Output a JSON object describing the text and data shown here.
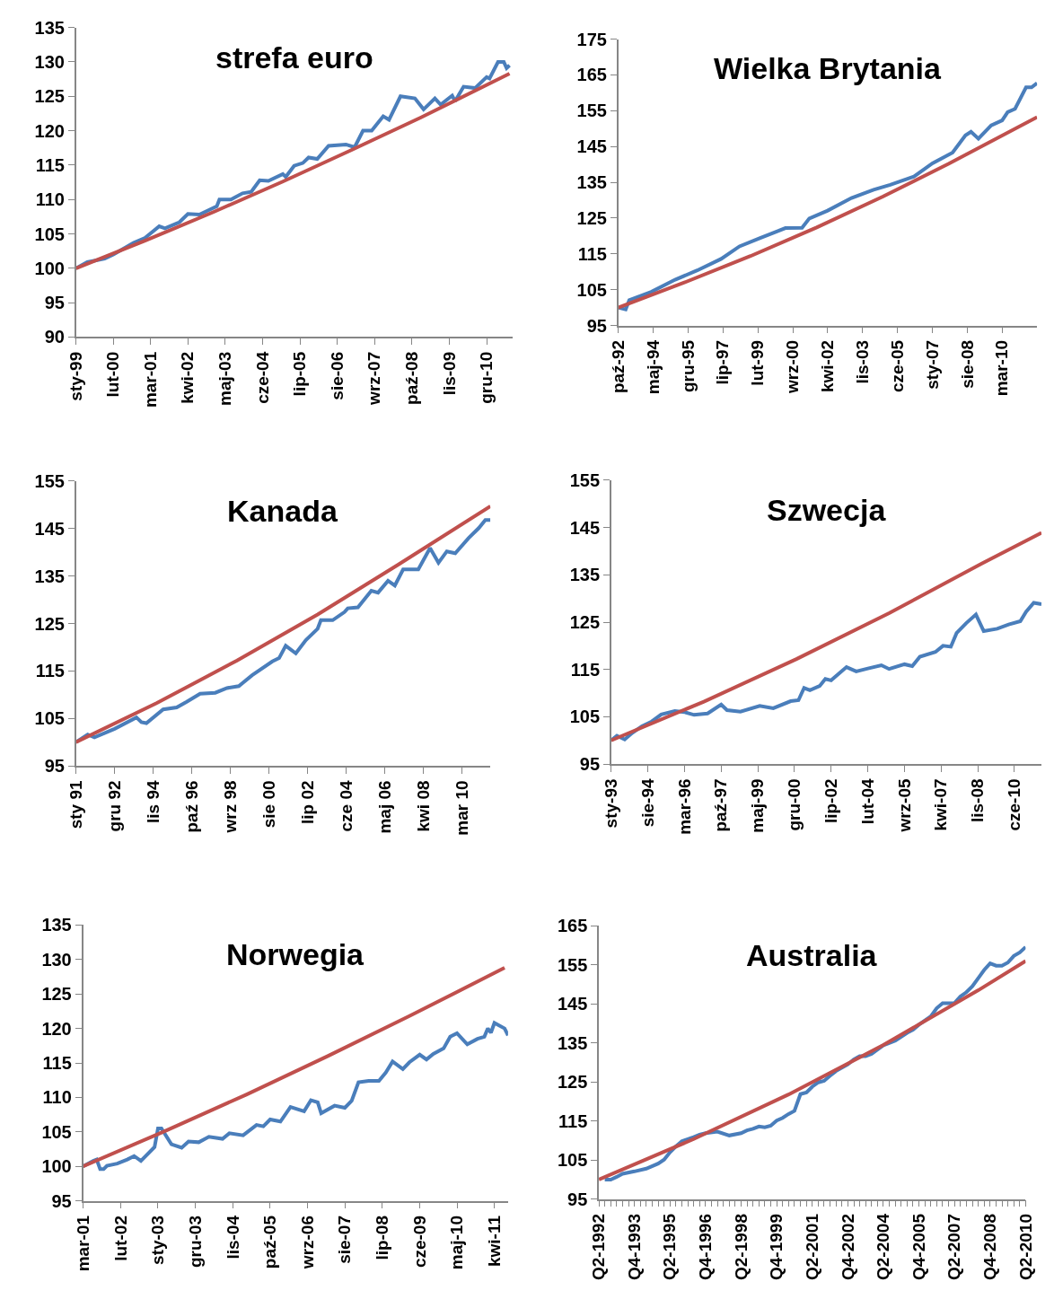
{
  "chart_data": [
    {
      "type": "line",
      "title": "strefa euro",
      "xlim": [
        "1999-01",
        "2011-09"
      ],
      "xticks": [
        {
          "value": "1999-01",
          "label": "sty-99"
        },
        {
          "value": "2000-02",
          "label": "lut-00"
        },
        {
          "value": "2001-03",
          "label": "mar-01"
        },
        {
          "value": "2002-04",
          "label": "kwi-02"
        },
        {
          "value": "2003-05",
          "label": "maj-03"
        },
        {
          "value": "2004-06",
          "label": "cze-04"
        },
        {
          "value": "2005-07",
          "label": "lip-05"
        },
        {
          "value": "2006-08",
          "label": "sie-06"
        },
        {
          "value": "2007-09",
          "label": "wrz-07"
        },
        {
          "value": "2008-10",
          "label": "paź-08"
        },
        {
          "value": "2009-11",
          "label": "lis-09"
        },
        {
          "value": "2010-12",
          "label": "gru-10"
        }
      ],
      "ylim": [
        90,
        135
      ],
      "yticks": [
        90,
        95,
        100,
        105,
        110,
        115,
        120,
        125,
        130,
        135
      ],
      "series": [
        {
          "color": "#4a7ebb",
          "x": [
            "1999-01",
            "1999-05",
            "1999-11",
            "2000-02",
            "2000-09",
            "2001-01",
            "2001-06",
            "2001-08",
            "2002-01",
            "2002-04",
            "2002-08",
            "2003-02",
            "2003-03",
            "2003-07",
            "2003-11",
            "2004-02",
            "2004-05",
            "2004-08",
            "2005-01",
            "2005-02",
            "2005-05",
            "2005-08",
            "2005-10",
            "2006-01",
            "2006-05",
            "2006-11",
            "2007-02",
            "2007-05",
            "2007-08",
            "2007-12",
            "2008-02",
            "2008-06",
            "2008-11",
            "2009-02",
            "2009-06",
            "2009-08",
            "2009-12",
            "2010-01",
            "2010-04",
            "2010-08",
            "2010-12",
            "2011-01",
            "2011-04",
            "2011-06",
            "2011-07",
            "2011-08"
          ],
          "values": [
            100,
            100.9,
            101.4,
            102,
            103.7,
            104.4,
            106.1,
            105.8,
            106.7,
            107.9,
            107.8,
            109,
            110,
            110,
            110.9,
            111.1,
            112.8,
            112.7,
            113.7,
            113.3,
            114.9,
            115.3,
            116.1,
            115.9,
            117.8,
            118,
            117.6,
            120,
            120,
            122.1,
            121.6,
            125,
            124.7,
            123.1,
            124.7,
            123.8,
            125.1,
            124.3,
            126.4,
            126.2,
            127.8,
            127.6,
            130,
            130,
            129.1,
            129.5
          ]
        },
        {
          "color": "#c0504d",
          "x": [
            "1999-01",
            "2001-01",
            "2003-01",
            "2005-01",
            "2007-01",
            "2009-01",
            "2011-08"
          ],
          "values": [
            100,
            104.0,
            108.2,
            112.6,
            117.2,
            121.9,
            128.3
          ]
        }
      ]
    },
    {
      "type": "line",
      "title": "Wielka Brytania",
      "xlim": [
        "1992-10",
        "2011-10"
      ],
      "xticks": [
        {
          "value": "1992-10",
          "label": "paź-92"
        },
        {
          "value": "1994-05",
          "label": "maj-94"
        },
        {
          "value": "1995-12",
          "label": "gru-95"
        },
        {
          "value": "1997-07",
          "label": "lip-97"
        },
        {
          "value": "1999-02",
          "label": "lut-99"
        },
        {
          "value": "2000-09",
          "label": "wrz-00"
        },
        {
          "value": "2002-04",
          "label": "kwi-02"
        },
        {
          "value": "2003-11",
          "label": "lis-03"
        },
        {
          "value": "2005-06",
          "label": "cze-05"
        },
        {
          "value": "2007-01",
          "label": "sty-07"
        },
        {
          "value": "2008-08",
          "label": "sie-08"
        },
        {
          "value": "2010-03",
          "label": "mar-10"
        }
      ],
      "ylim": [
        95,
        175
      ],
      "yticks": [
        95,
        105,
        115,
        125,
        135,
        145,
        155,
        165,
        175
      ],
      "series": [
        {
          "color": "#4a7ebb",
          "x": [
            "1992-10",
            "1993-02",
            "1993-04",
            "1994-04",
            "1995-05",
            "1996-05",
            "1997-06",
            "1998-04",
            "1999-03",
            "2000-05",
            "2001-02",
            "2001-06",
            "2002-04",
            "2003-05",
            "2004-05",
            "2005-02",
            "2006-03",
            "2007-01",
            "2007-12",
            "2008-07",
            "2008-10",
            "2009-02",
            "2009-09",
            "2010-03",
            "2010-06",
            "2010-10",
            "2011-04",
            "2011-07",
            "2011-10"
          ],
          "values": [
            100,
            99.5,
            102.1,
            104.4,
            107.8,
            110.4,
            113.6,
            117.1,
            119.4,
            122.2,
            122.3,
            124.9,
            127.1,
            130.6,
            132.9,
            134.3,
            136.6,
            140.3,
            143.3,
            148.1,
            149.1,
            147.2,
            150.9,
            152.3,
            154.6,
            155.5,
            161.5,
            161.5,
            162.7
          ]
        },
        {
          "color": "#c0504d",
          "x": [
            "1992-10",
            "1995-10",
            "1998-10",
            "2001-10",
            "2004-10",
            "2007-10",
            "2011-10"
          ],
          "values": [
            100,
            107.0,
            114.4,
            122.4,
            131.0,
            140.2,
            153.2
          ]
        }
      ]
    },
    {
      "type": "line",
      "title": "Kanada",
      "xlim": [
        "1991-01",
        "2011-08"
      ],
      "xticks": [
        {
          "value": "1991-01",
          "label": "sty 91"
        },
        {
          "value": "1992-12",
          "label": "gru 92"
        },
        {
          "value": "1994-11",
          "label": "lis 94"
        },
        {
          "value": "1996-10",
          "label": "paź 96"
        },
        {
          "value": "1998-09",
          "label": "wrz 98"
        },
        {
          "value": "2000-08",
          "label": "sie 00"
        },
        {
          "value": "2002-07",
          "label": "lip 02"
        },
        {
          "value": "2004-06",
          "label": "cze 04"
        },
        {
          "value": "2006-05",
          "label": "maj 06"
        },
        {
          "value": "2008-04",
          "label": "kwi 08"
        },
        {
          "value": "2010-03",
          "label": "mar 10"
        }
      ],
      "ylim": [
        95,
        155
      ],
      "yticks": [
        95,
        105,
        115,
        125,
        135,
        145,
        155
      ],
      "series": [
        {
          "color": "#4a7ebb",
          "x": [
            "1991-01",
            "1991-08",
            "1991-12",
            "1992-12",
            "1994-01",
            "1994-04",
            "1994-07",
            "1995-05",
            "1996-01",
            "1996-07",
            "1997-03",
            "1997-12",
            "1998-07",
            "1999-02",
            "1999-10",
            "2000-10",
            "2001-02",
            "2001-06",
            "2001-12",
            "2002-06",
            "2003-01",
            "2003-03",
            "2003-10",
            "2004-05",
            "2004-07",
            "2005-01",
            "2005-09",
            "2006-01",
            "2006-07",
            "2006-11",
            "2007-04",
            "2008-01",
            "2008-08",
            "2009-01",
            "2009-06",
            "2009-11",
            "2010-07",
            "2011-01",
            "2011-05",
            "2011-08"
          ],
          "values": [
            100,
            101.6,
            101,
            102.8,
            105.2,
            104.2,
            104,
            106.9,
            107.3,
            108.5,
            110.2,
            110.4,
            111.4,
            111.8,
            114.1,
            117,
            117.7,
            120.3,
            118.7,
            121.5,
            123.9,
            125.7,
            125.7,
            127.4,
            128.2,
            128.4,
            131.9,
            131.5,
            134,
            133,
            136.4,
            136.4,
            140.9,
            137.8,
            140.2,
            139.8,
            143,
            145.1,
            146.8,
            146.8
          ]
        },
        {
          "color": "#c0504d",
          "x": [
            "1991-01",
            "1995-01",
            "1999-01",
            "2003-01",
            "2007-01",
            "2011-08"
          ],
          "values": [
            100,
            108.2,
            117.2,
            126.9,
            137.4,
            149.7
          ]
        }
      ]
    },
    {
      "type": "line",
      "title": "Szwecja",
      "xlim": [
        "1993-01",
        "2011-08"
      ],
      "xticks": [
        {
          "value": "1993-01",
          "label": "sty-93"
        },
        {
          "value": "1994-08",
          "label": "sie-94"
        },
        {
          "value": "1996-03",
          "label": "mar-96"
        },
        {
          "value": "1997-10",
          "label": "paź-97"
        },
        {
          "value": "1999-05",
          "label": "maj-99"
        },
        {
          "value": "2000-12",
          "label": "gru-00"
        },
        {
          "value": "2002-07",
          "label": "lip-02"
        },
        {
          "value": "2004-02",
          "label": "lut-04"
        },
        {
          "value": "2005-09",
          "label": "wrz-05"
        },
        {
          "value": "2007-04",
          "label": "kwi-07"
        },
        {
          "value": "2008-11",
          "label": "lis-08"
        },
        {
          "value": "2010-06",
          "label": "cze-10"
        }
      ],
      "ylim": [
        95,
        155
      ],
      "yticks": [
        95,
        105,
        115,
        125,
        135,
        145,
        155
      ],
      "series": [
        {
          "color": "#4a7ebb",
          "x": [
            "1993-01",
            "1993-04",
            "1993-08",
            "1993-12",
            "1994-05",
            "1994-10",
            "1995-03",
            "1995-10",
            "1996-03",
            "1996-08",
            "1997-03",
            "1997-10",
            "1998-01",
            "1998-08",
            "1999-06",
            "2000-01",
            "2000-10",
            "2001-02",
            "2001-05",
            "2001-08",
            "2002-01",
            "2002-04",
            "2002-07",
            "2003-03",
            "2003-08",
            "2004-02",
            "2004-09",
            "2005-01",
            "2005-09",
            "2006-01",
            "2006-05",
            "2007-01",
            "2007-05",
            "2007-09",
            "2007-12",
            "2008-05",
            "2008-10",
            "2009-02",
            "2009-09",
            "2010-03",
            "2010-09",
            "2010-12",
            "2011-04",
            "2011-08"
          ],
          "values": [
            100,
            101,
            100.2,
            101.6,
            103,
            104,
            105.5,
            106.2,
            106,
            105.4,
            105.7,
            107.6,
            106.4,
            106.1,
            107.3,
            106.8,
            108.3,
            108.5,
            111.1,
            110.6,
            111.5,
            113,
            112.7,
            115.5,
            114.6,
            115.2,
            115.9,
            115.1,
            116.1,
            115.7,
            117.7,
            118.7,
            120,
            119.8,
            122.7,
            124.8,
            126.6,
            123.1,
            123.6,
            124.5,
            125.2,
            127.2,
            129.1,
            128.8
          ]
        },
        {
          "color": "#c0504d",
          "x": [
            "1993-01",
            "1997-01",
            "2001-01",
            "2005-01",
            "2009-01",
            "2011-08"
          ],
          "values": [
            100,
            108.2,
            117.2,
            126.9,
            137.4,
            143.9
          ]
        }
      ]
    },
    {
      "type": "line",
      "title": "Norwegia",
      "xlim": [
        "2001-03",
        "2011-08"
      ],
      "xticks": [
        {
          "value": "2001-03",
          "label": "mar-01"
        },
        {
          "value": "2002-02",
          "label": "lut-02"
        },
        {
          "value": "2003-01",
          "label": "sty-03"
        },
        {
          "value": "2003-12",
          "label": "gru-03"
        },
        {
          "value": "2004-11",
          "label": "lis-04"
        },
        {
          "value": "2005-10",
          "label": "paź-05"
        },
        {
          "value": "2006-09",
          "label": "wrz-06"
        },
        {
          "value": "2007-08",
          "label": "sie-07"
        },
        {
          "value": "2008-07",
          "label": "lip-08"
        },
        {
          "value": "2009-06",
          "label": "cze-09"
        },
        {
          "value": "2010-05",
          "label": "maj-10"
        },
        {
          "value": "2011-04",
          "label": "kwi-11"
        }
      ],
      "ylim": [
        95,
        135
      ],
      "yticks": [
        95,
        100,
        105,
        110,
        115,
        120,
        125,
        130,
        135
      ],
      "series": [
        {
          "color": "#4a7ebb",
          "x": [
            "2001-03",
            "2001-06",
            "2001-07",
            "2001-08",
            "2001-09",
            "2001-10",
            "2002-01",
            "2002-04",
            "2002-06",
            "2002-08",
            "2002-12",
            "2003-01",
            "2003-02",
            "2003-05",
            "2003-08",
            "2003-10",
            "2004-01",
            "2004-04",
            "2004-08",
            "2004-10",
            "2005-02",
            "2005-06",
            "2005-08",
            "2005-10",
            "2006-01",
            "2006-04",
            "2006-08",
            "2006-10",
            "2006-12",
            "2007-01",
            "2007-05",
            "2007-08",
            "2007-10",
            "2007-12",
            "2008-03",
            "2008-06",
            "2008-08",
            "2008-10",
            "2009-01",
            "2009-03",
            "2009-06",
            "2009-08",
            "2009-10",
            "2010-01",
            "2010-03",
            "2010-05",
            "2010-08",
            "2010-11",
            "2011-01",
            "2011-02",
            "2011-03",
            "2011-04",
            "2011-07",
            "2011-08"
          ],
          "values": [
            100,
            100.8,
            101,
            99.6,
            99.6,
            100.1,
            100.4,
            101,
            101.5,
            100.8,
            102.8,
            105.5,
            105.5,
            103.2,
            102.7,
            103.6,
            103.5,
            104.3,
            104,
            104.8,
            104.5,
            106,
            105.8,
            106.8,
            106.5,
            108.6,
            108,
            109.6,
            109.3,
            107.7,
            108.8,
            108.5,
            109.5,
            112.2,
            112.4,
            112.4,
            113.6,
            115.2,
            114.1,
            115.1,
            116.2,
            115.5,
            116.3,
            117.1,
            118.8,
            119.3,
            117.7,
            118.5,
            118.8,
            120,
            119.4,
            120.8,
            120,
            119
          ]
        },
        {
          "color": "#c0504d",
          "x": [
            "2001-03",
            "2003-03",
            "2005-03",
            "2007-03",
            "2009-03",
            "2011-07"
          ],
          "values": [
            100,
            105.1,
            110.4,
            116.0,
            121.8,
            128.8
          ]
        }
      ]
    },
    {
      "type": "line",
      "title": "Australia",
      "xlim": [
        "1992-04",
        "2010-04"
      ],
      "xticks": [
        {
          "value": "1992-04",
          "label": "Q2-1992"
        },
        {
          "value": "1992-07",
          "label": null
        },
        {
          "value": "1992-10",
          "label": null
        },
        {
          "value": "1993-01",
          "label": null
        },
        {
          "value": "1993-04",
          "label": null
        },
        {
          "value": "1993-07",
          "label": null
        },
        {
          "value": "1993-10",
          "label": "Q4-1993"
        },
        {
          "value": "1994-01",
          "label": null
        },
        {
          "value": "1994-04",
          "label": null
        },
        {
          "value": "1994-07",
          "label": null
        },
        {
          "value": "1994-10",
          "label": null
        },
        {
          "value": "1995-01",
          "label": null
        },
        {
          "value": "1995-04",
          "label": "Q2-1995"
        },
        {
          "value": "1995-07",
          "label": null
        },
        {
          "value": "1995-10",
          "label": null
        },
        {
          "value": "1996-01",
          "label": null
        },
        {
          "value": "1996-04",
          "label": null
        },
        {
          "value": "1996-07",
          "label": null
        },
        {
          "value": "1996-10",
          "label": "Q4-1996"
        },
        {
          "value": "1997-01",
          "label": null
        },
        {
          "value": "1997-04",
          "label": null
        },
        {
          "value": "1997-07",
          "label": null
        },
        {
          "value": "1997-10",
          "label": null
        },
        {
          "value": "1998-01",
          "label": null
        },
        {
          "value": "1998-04",
          "label": "Q2-1998"
        },
        {
          "value": "1998-07",
          "label": null
        },
        {
          "value": "1998-10",
          "label": null
        },
        {
          "value": "1999-01",
          "label": null
        },
        {
          "value": "1999-04",
          "label": null
        },
        {
          "value": "1999-07",
          "label": null
        },
        {
          "value": "1999-10",
          "label": "Q4-1999"
        },
        {
          "value": "2000-01",
          "label": null
        },
        {
          "value": "2000-04",
          "label": null
        },
        {
          "value": "2000-07",
          "label": null
        },
        {
          "value": "2000-10",
          "label": null
        },
        {
          "value": "2001-01",
          "label": null
        },
        {
          "value": "2001-04",
          "label": "Q2-2001"
        },
        {
          "value": "2001-07",
          "label": null
        },
        {
          "value": "2001-10",
          "label": null
        },
        {
          "value": "2002-01",
          "label": null
        },
        {
          "value": "2002-04",
          "label": null
        },
        {
          "value": "2002-07",
          "label": null
        },
        {
          "value": "2002-10",
          "label": "Q4-2002"
        },
        {
          "value": "2003-01",
          "label": null
        },
        {
          "value": "2003-04",
          "label": null
        },
        {
          "value": "2003-07",
          "label": null
        },
        {
          "value": "2003-10",
          "label": null
        },
        {
          "value": "2004-01",
          "label": null
        },
        {
          "value": "2004-04",
          "label": "Q2-2004"
        },
        {
          "value": "2004-07",
          "label": null
        },
        {
          "value": "2004-10",
          "label": null
        },
        {
          "value": "2005-01",
          "label": null
        },
        {
          "value": "2005-04",
          "label": null
        },
        {
          "value": "2005-07",
          "label": null
        },
        {
          "value": "2005-10",
          "label": "Q4-2005"
        },
        {
          "value": "2006-01",
          "label": null
        },
        {
          "value": "2006-04",
          "label": null
        },
        {
          "value": "2006-07",
          "label": null
        },
        {
          "value": "2006-10",
          "label": null
        },
        {
          "value": "2007-01",
          "label": null
        },
        {
          "value": "2007-04",
          "label": "Q2-2007"
        },
        {
          "value": "2007-07",
          "label": null
        },
        {
          "value": "2007-10",
          "label": null
        },
        {
          "value": "2008-01",
          "label": null
        },
        {
          "value": "2008-04",
          "label": null
        },
        {
          "value": "2008-07",
          "label": null
        },
        {
          "value": "2008-10",
          "label": "Q4-2008"
        },
        {
          "value": "2009-01",
          "label": null
        },
        {
          "value": "2009-04",
          "label": null
        },
        {
          "value": "2009-07",
          "label": null
        },
        {
          "value": "2009-10",
          "label": null
        },
        {
          "value": "2010-01",
          "label": null
        },
        {
          "value": "2010-04",
          "label": "Q2-2010"
        }
      ],
      "ylim": [
        95,
        165
      ],
      "yticks": [
        95,
        105,
        115,
        125,
        135,
        145,
        155,
        165
      ],
      "series": [
        {
          "color": "#4a7ebb",
          "x": [
            "1992-07",
            "1992-10",
            "1993-01",
            "1993-04",
            "1993-10",
            "1994-04",
            "1994-10",
            "1995-01",
            "1995-04",
            "1995-07",
            "1995-10",
            "1996-04",
            "1996-07",
            "1996-10",
            "1997-04",
            "1997-10",
            "1998-04",
            "1998-07",
            "1998-10",
            "1999-01",
            "1999-04",
            "1999-07",
            "1999-10",
            "2000-01",
            "2000-04",
            "2000-07",
            "2000-10",
            "2001-01",
            "2001-04",
            "2001-07",
            "2001-10",
            "2002-01",
            "2002-04",
            "2002-10",
            "2003-01",
            "2003-04",
            "2003-07",
            "2003-10",
            "2004-01",
            "2004-04",
            "2004-10",
            "2005-04",
            "2005-07",
            "2005-10",
            "2006-04",
            "2006-07",
            "2006-10",
            "2007-04",
            "2007-07",
            "2007-10",
            "2008-01",
            "2008-04",
            "2008-07",
            "2008-10",
            "2009-01",
            "2009-04",
            "2009-07",
            "2009-10",
            "2010-01",
            "2010-04"
          ],
          "values": [
            100,
            100,
            100.7,
            101.5,
            102.1,
            102.8,
            104.1,
            105.1,
            107,
            108.5,
            109.8,
            110.9,
            111.5,
            111.9,
            112.3,
            111.3,
            111.9,
            112.6,
            113,
            113.6,
            113.4,
            113.8,
            115.1,
            115.8,
            116.8,
            117.6,
            121.9,
            122.3,
            123.8,
            124.9,
            125.3,
            126.6,
            127.8,
            129.5,
            130.8,
            131.6,
            131.6,
            132.2,
            133.3,
            134.4,
            135.6,
            137.6,
            138.4,
            139.7,
            141.8,
            143.9,
            145.2,
            145.2,
            146.9,
            148,
            149.5,
            151.6,
            153.7,
            155.4,
            154.8,
            154.8,
            155.6,
            157.3,
            158.2,
            159.6
          ]
        },
        {
          "color": "#c0504d",
          "x": [
            "1992-04",
            "1996-04",
            "2000-04",
            "2004-04",
            "2008-04",
            "2010-04"
          ],
          "values": [
            100,
            110.4,
            121.8,
            134.5,
            148.5,
            156.0
          ]
        }
      ]
    }
  ]
}
